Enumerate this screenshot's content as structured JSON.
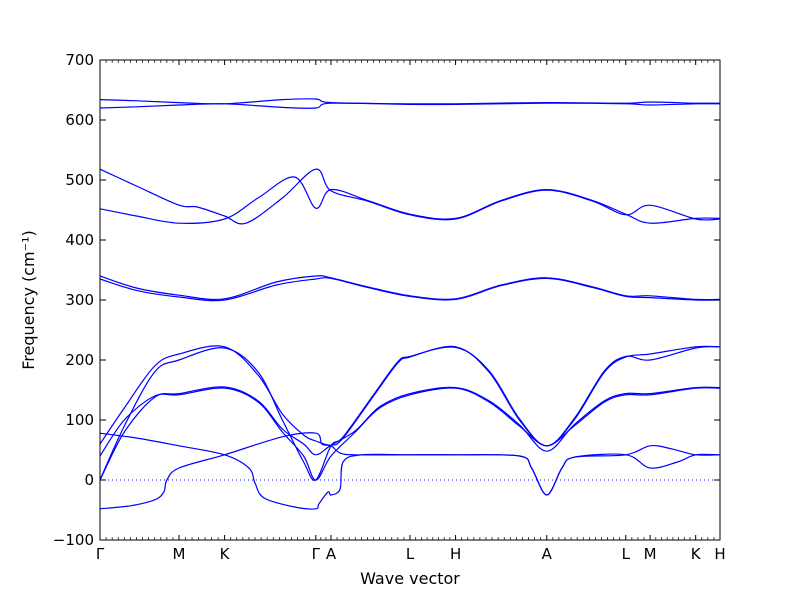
{
  "chart_data": {
    "type": "line",
    "xlabel": "Wave vector",
    "ylabel": "Frequency (cm⁻¹)",
    "ylim": [
      -100,
      700
    ],
    "yticks": [
      -100,
      0,
      100,
      200,
      300,
      400,
      500,
      600,
      700
    ],
    "zero_line": 0,
    "grid": false,
    "line_color": "#0000ff",
    "xticks": [
      {
        "label": "Γ",
        "pos": 0
      },
      {
        "label": "M",
        "pos": 1.3
      },
      {
        "label": "K",
        "pos": 2.05
      },
      {
        "label": "Γ",
        "pos": 3.55
      },
      {
        "label": "A",
        "pos": 3.8
      },
      {
        "label": "L",
        "pos": 5.1
      },
      {
        "label": "H",
        "pos": 5.85
      },
      {
        "label": "A",
        "pos": 7.35
      },
      {
        "label": "L",
        "pos": 8.65
      },
      {
        "label": "M",
        "pos": 9.05
      },
      {
        "label": "K",
        "pos": 9.8
      },
      {
        "label": "H",
        "pos": 10.2
      }
    ],
    "series": [
      {
        "values": [
          [
            0,
            -48
          ],
          [
            0.5,
            -43
          ],
          [
            0.9,
            -33
          ],
          [
            1.05,
            -20
          ],
          [
            1.1,
            0
          ],
          [
            1.3,
            20
          ],
          [
            2.05,
            42
          ],
          [
            3.0,
            72
          ],
          [
            3.55,
            78
          ],
          [
            3.65,
            60
          ],
          [
            3.8,
            57
          ],
          [
            3.95,
            45
          ],
          [
            4.2,
            42
          ],
          [
            5.1,
            42
          ],
          [
            5.85,
            42
          ],
          [
            6.9,
            40
          ],
          [
            7.1,
            20
          ],
          [
            7.35,
            -25
          ],
          [
            7.6,
            20
          ],
          [
            7.8,
            38
          ],
          [
            8.65,
            42
          ],
          [
            9.05,
            20
          ],
          [
            9.5,
            30
          ],
          [
            9.8,
            42
          ],
          [
            10.2,
            42
          ]
        ]
      },
      {
        "values": [
          [
            0,
            78
          ],
          [
            0.6,
            70
          ],
          [
            1.3,
            57
          ],
          [
            2.05,
            42
          ],
          [
            2.45,
            20
          ],
          [
            2.55,
            -5
          ],
          [
            2.7,
            -30
          ],
          [
            3.2,
            -45
          ],
          [
            3.55,
            -48
          ],
          [
            3.6,
            -40
          ],
          [
            3.75,
            -20
          ],
          [
            3.8,
            -25
          ],
          [
            3.95,
            -15
          ],
          [
            4.0,
            30
          ],
          [
            4.3,
            42
          ],
          [
            5.1,
            42
          ],
          [
            5.85,
            42
          ],
          [
            6.9,
            40
          ],
          [
            7.1,
            20
          ],
          [
            7.35,
            -25
          ],
          [
            7.6,
            20
          ],
          [
            7.8,
            38
          ],
          [
            8.65,
            42
          ],
          [
            9.05,
            57
          ],
          [
            9.4,
            52
          ],
          [
            9.8,
            42
          ],
          [
            10.2,
            42
          ]
        ]
      },
      {
        "values": [
          [
            0,
            40
          ],
          [
            0.4,
            100
          ],
          [
            0.9,
            140
          ],
          [
            1.3,
            142
          ],
          [
            2.05,
            153
          ],
          [
            2.6,
            130
          ],
          [
            3.0,
            80
          ],
          [
            3.35,
            40
          ],
          [
            3.55,
            0
          ],
          [
            3.8,
            40
          ],
          [
            4.2,
            80
          ],
          [
            4.6,
            120
          ],
          [
            5.1,
            142
          ],
          [
            5.85,
            153
          ],
          [
            6.4,
            130
          ],
          [
            6.9,
            90
          ],
          [
            7.35,
            57
          ],
          [
            7.8,
            90
          ],
          [
            8.3,
            130
          ],
          [
            8.65,
            142
          ],
          [
            9.05,
            142
          ],
          [
            9.8,
            153
          ],
          [
            10.2,
            153
          ]
        ]
      },
      {
        "values": [
          [
            0,
            0
          ],
          [
            0.4,
            80
          ],
          [
            0.9,
            138
          ],
          [
            1.3,
            144
          ],
          [
            2.05,
            155
          ],
          [
            2.6,
            132
          ],
          [
            3.0,
            85
          ],
          [
            3.35,
            60
          ],
          [
            3.55,
            42
          ],
          [
            3.8,
            58
          ],
          [
            4.2,
            82
          ],
          [
            4.6,
            122
          ],
          [
            5.1,
            144
          ],
          [
            5.85,
            154
          ],
          [
            6.4,
            132
          ],
          [
            6.9,
            92
          ],
          [
            7.35,
            48
          ],
          [
            7.8,
            92
          ],
          [
            8.3,
            132
          ],
          [
            8.65,
            144
          ],
          [
            9.05,
            144
          ],
          [
            9.8,
            154
          ],
          [
            10.2,
            154
          ]
        ]
      },
      {
        "values": [
          [
            0,
            60
          ],
          [
            0.4,
            120
          ],
          [
            0.9,
            190
          ],
          [
            1.3,
            210
          ],
          [
            2.05,
            222
          ],
          [
            2.6,
            175
          ],
          [
            3.0,
            110
          ],
          [
            3.35,
            75
          ],
          [
            3.55,
            65
          ],
          [
            3.8,
            58
          ],
          [
            4.0,
            70
          ],
          [
            4.5,
            140
          ],
          [
            4.9,
            195
          ],
          [
            5.1,
            205
          ],
          [
            5.85,
            222
          ],
          [
            6.4,
            180
          ],
          [
            6.9,
            100
          ],
          [
            7.35,
            57
          ],
          [
            7.8,
            100
          ],
          [
            8.3,
            180
          ],
          [
            8.65,
            205
          ],
          [
            9.05,
            210
          ],
          [
            9.8,
            222
          ],
          [
            10.2,
            222
          ]
        ]
      },
      {
        "values": [
          [
            0,
            0
          ],
          [
            0.4,
            90
          ],
          [
            0.9,
            180
          ],
          [
            1.3,
            200
          ],
          [
            2.05,
            220
          ],
          [
            2.6,
            180
          ],
          [
            3.0,
            100
          ],
          [
            3.35,
            30
          ],
          [
            3.55,
            0
          ],
          [
            3.8,
            57
          ],
          [
            4.0,
            72
          ],
          [
            4.5,
            142
          ],
          [
            4.9,
            197
          ],
          [
            5.1,
            206
          ],
          [
            5.85,
            221
          ],
          [
            6.4,
            182
          ],
          [
            6.9,
            102
          ],
          [
            7.35,
            57
          ],
          [
            7.8,
            102
          ],
          [
            8.3,
            182
          ],
          [
            8.65,
            206
          ],
          [
            9.05,
            200
          ],
          [
            9.8,
            220
          ],
          [
            10.2,
            222
          ]
        ]
      },
      {
        "values": [
          [
            0,
            340
          ],
          [
            0.6,
            320
          ],
          [
            1.3,
            308
          ],
          [
            2.05,
            302
          ],
          [
            2.9,
            330
          ],
          [
            3.55,
            340
          ],
          [
            3.8,
            337
          ],
          [
            4.4,
            322
          ],
          [
            5.1,
            307
          ],
          [
            5.85,
            302
          ],
          [
            6.6,
            325
          ],
          [
            7.35,
            337
          ],
          [
            8.1,
            322
          ],
          [
            8.65,
            307
          ],
          [
            9.05,
            307
          ],
          [
            9.8,
            301
          ],
          [
            10.2,
            301
          ]
        ]
      },
      {
        "values": [
          [
            0,
            335
          ],
          [
            0.6,
            316
          ],
          [
            1.3,
            305
          ],
          [
            2.05,
            300
          ],
          [
            2.9,
            325
          ],
          [
            3.55,
            335
          ],
          [
            3.8,
            336
          ],
          [
            4.4,
            321
          ],
          [
            5.1,
            306
          ],
          [
            5.85,
            301
          ],
          [
            6.6,
            324
          ],
          [
            7.35,
            336
          ],
          [
            8.1,
            321
          ],
          [
            8.65,
            306
          ],
          [
            9.05,
            304
          ],
          [
            9.8,
            300
          ],
          [
            10.2,
            300
          ]
        ]
      },
      {
        "values": [
          [
            0,
            518
          ],
          [
            0.6,
            490
          ],
          [
            1.3,
            458
          ],
          [
            1.6,
            455
          ],
          [
            2.05,
            440
          ],
          [
            2.4,
            428
          ],
          [
            3.0,
            470
          ],
          [
            3.55,
            518
          ],
          [
            3.8,
            482
          ],
          [
            4.4,
            465
          ],
          [
            5.1,
            442
          ],
          [
            5.85,
            435
          ],
          [
            6.6,
            465
          ],
          [
            7.35,
            483
          ],
          [
            8.1,
            465
          ],
          [
            8.65,
            442
          ],
          [
            9.05,
            458
          ],
          [
            9.8,
            435
          ],
          [
            10.2,
            435
          ]
        ]
      },
      {
        "values": [
          [
            0,
            452
          ],
          [
            0.6,
            440
          ],
          [
            1.3,
            428
          ],
          [
            2.05,
            435
          ],
          [
            2.6,
            470
          ],
          [
            3.2,
            505
          ],
          [
            3.55,
            453
          ],
          [
            3.8,
            484
          ],
          [
            4.4,
            466
          ],
          [
            5.1,
            443
          ],
          [
            5.85,
            436
          ],
          [
            6.6,
            466
          ],
          [
            7.35,
            484
          ],
          [
            8.1,
            466
          ],
          [
            8.65,
            443
          ],
          [
            9.05,
            428
          ],
          [
            9.8,
            436
          ],
          [
            10.2,
            436
          ]
        ]
      },
      {
        "values": [
          [
            0,
            634
          ],
          [
            0.6,
            632
          ],
          [
            1.3,
            629
          ],
          [
            2.05,
            627
          ],
          [
            3.0,
            634
          ],
          [
            3.55,
            635
          ],
          [
            3.8,
            629
          ],
          [
            5.1,
            627
          ],
          [
            5.85,
            627
          ],
          [
            7.35,
            629
          ],
          [
            8.65,
            628
          ],
          [
            9.05,
            630
          ],
          [
            9.8,
            628
          ],
          [
            10.2,
            628
          ]
        ]
      },
      {
        "values": [
          [
            0,
            620
          ],
          [
            0.6,
            622
          ],
          [
            1.3,
            625
          ],
          [
            2.05,
            627
          ],
          [
            3.0,
            621
          ],
          [
            3.55,
            620
          ],
          [
            3.8,
            628
          ],
          [
            5.1,
            626
          ],
          [
            5.85,
            626
          ],
          [
            7.35,
            628
          ],
          [
            8.65,
            627
          ],
          [
            9.05,
            625
          ],
          [
            9.8,
            627
          ],
          [
            10.2,
            627
          ]
        ]
      }
    ]
  }
}
